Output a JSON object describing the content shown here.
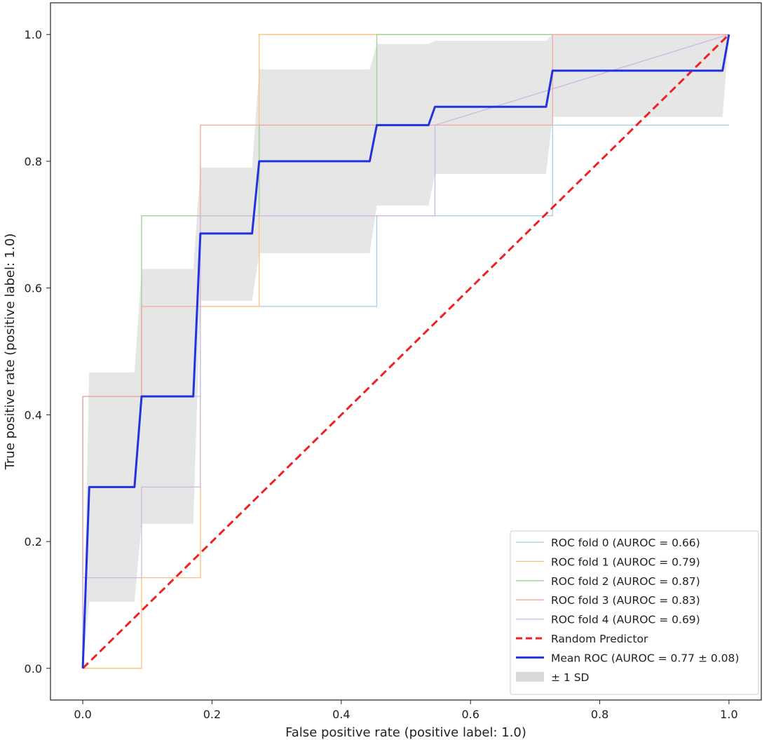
{
  "chart_data": {
    "type": "line",
    "xlabel": "False positive rate (positive label: 1.0)",
    "ylabel": "True positive rate (positive label: 1.0)",
    "xlim": [
      -0.05,
      1.05
    ],
    "ylim": [
      -0.05,
      1.05
    ],
    "xticks": [
      0.0,
      0.2,
      0.4,
      0.6,
      0.8,
      1.0
    ],
    "yticks": [
      0.0,
      0.2,
      0.4,
      0.6,
      0.8,
      1.0
    ],
    "xtick_labels": [
      "0.0",
      "0.2",
      "0.4",
      "0.6",
      "0.8",
      "1.0"
    ],
    "ytick_labels": [
      "0.0",
      "0.2",
      "0.4",
      "0.6",
      "0.8",
      "1.0"
    ],
    "grid": false,
    "legend_position": "lower-right",
    "series": [
      {
        "name": "ROC fold 0 (AUROC = 0.66)",
        "color": "#a6cee3",
        "x": [
          0,
          0,
          0.091,
          0.091,
          0.182,
          0.182,
          0.455,
          0.455,
          0.727,
          0.727,
          1.0
        ],
        "y": [
          0,
          0.429,
          0.429,
          0.429,
          0.429,
          0.571,
          0.571,
          0.714,
          0.714,
          0.857,
          0.857
        ]
      },
      {
        "name": "ROC fold 1 (AUROC = 0.79)",
        "color": "#fdbf7f",
        "x": [
          0,
          0.091,
          0.091,
          0.182,
          0.182,
          0.273,
          0.273,
          1.0
        ],
        "y": [
          0,
          0,
          0.143,
          0.143,
          0.571,
          0.571,
          1.0,
          1.0
        ]
      },
      {
        "name": "ROC fold 2 (AUROC = 0.87)",
        "color": "#98d098",
        "x": [
          0,
          0,
          0.091,
          0.091,
          0.273,
          0.273,
          0.455,
          0.455,
          1.0
        ],
        "y": [
          0,
          0.429,
          0.429,
          0.714,
          0.714,
          0.857,
          0.857,
          1.0,
          1.0
        ]
      },
      {
        "name": "ROC fold 3 (AUROC = 0.83)",
        "color": "#f4a6a0",
        "x": [
          0,
          0,
          0.091,
          0.091,
          0.182,
          0.182,
          0.727,
          0.727,
          1.0
        ],
        "y": [
          0,
          0.429,
          0.429,
          0.571,
          0.571,
          0.857,
          0.857,
          1.0,
          1.0
        ]
      },
      {
        "name": "ROC fold 4 (AUROC = 0.69)",
        "color": "#cdb8dd",
        "x": [
          0,
          0,
          0.091,
          0.091,
          0.182,
          0.182,
          0.545,
          0.545,
          1.0
        ],
        "y": [
          0,
          0.143,
          0.143,
          0.286,
          0.286,
          0.714,
          0.714,
          0.857,
          1.0
        ]
      },
      {
        "name": "Random Predictor",
        "color": "#ee2222",
        "style": "dashed",
        "x": [
          0,
          1
        ],
        "y": [
          0,
          1
        ]
      },
      {
        "name": "Mean ROC (AUROC = 0.77 ± 0.08)",
        "color": "#2233dd",
        "x": [
          0,
          0.01,
          0.08,
          0.091,
          0.171,
          0.182,
          0.262,
          0.273,
          0.444,
          0.455,
          0.535,
          0.545,
          0.717,
          0.727,
          0.99,
          1.0
        ],
        "y": [
          0,
          0.286,
          0.286,
          0.429,
          0.429,
          0.686,
          0.686,
          0.8,
          0.8,
          0.857,
          0.857,
          0.886,
          0.886,
          0.943,
          0.943,
          1.0
        ]
      }
    ],
    "band": {
      "name": "± 1 SD",
      "color": "#d9d9d9",
      "x": [
        0,
        0.01,
        0.08,
        0.091,
        0.171,
        0.182,
        0.262,
        0.273,
        0.444,
        0.455,
        0.535,
        0.545,
        0.717,
        0.727,
        0.99,
        1.0
      ],
      "upper": [
        0,
        0.467,
        0.467,
        0.63,
        0.63,
        0.79,
        0.79,
        0.945,
        0.945,
        0.985,
        0.985,
        0.99,
        0.99,
        1.0,
        1.0,
        1.0
      ],
      "lower": [
        0,
        0.105,
        0.105,
        0.228,
        0.228,
        0.58,
        0.58,
        0.655,
        0.655,
        0.73,
        0.73,
        0.78,
        0.78,
        0.87,
        0.87,
        1.0
      ]
    }
  }
}
